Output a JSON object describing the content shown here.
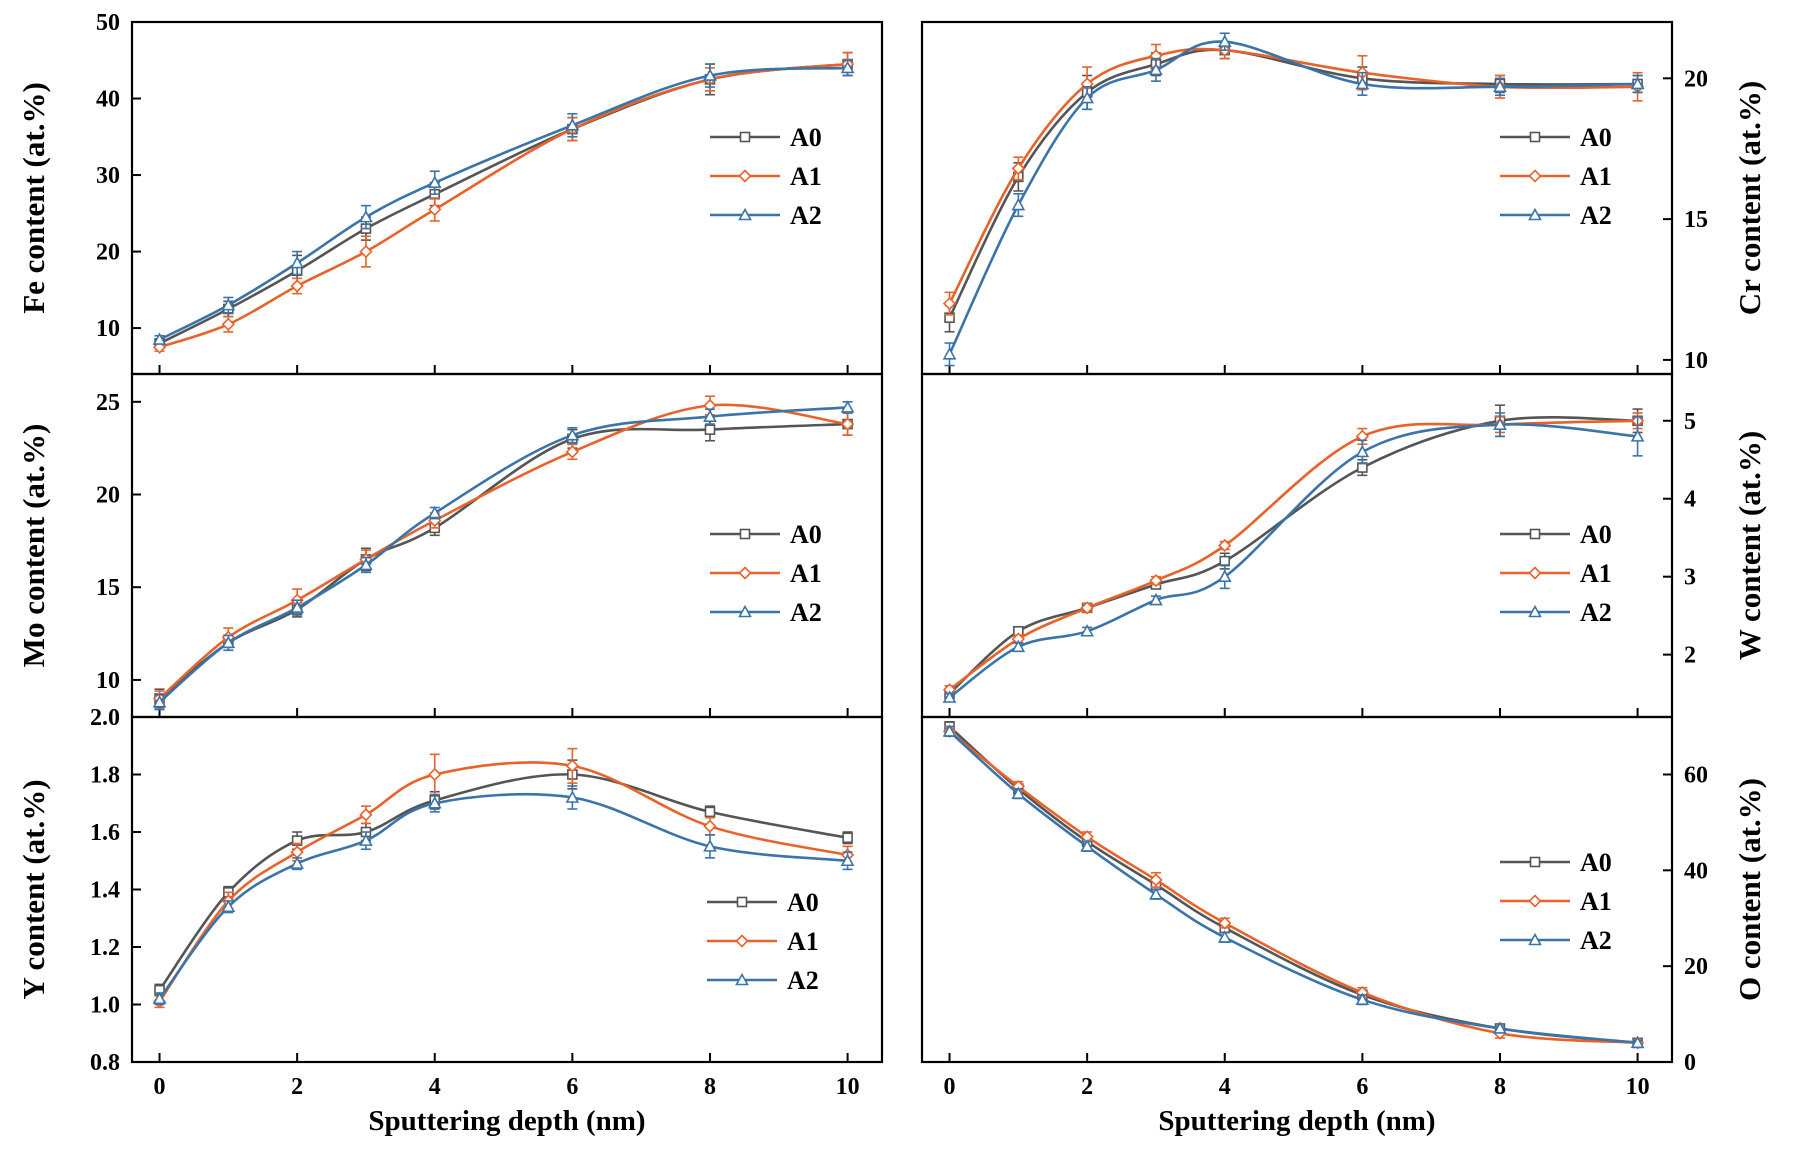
{
  "figure": {
    "series_names": [
      "A0",
      "A1",
      "A2"
    ],
    "series_colors": {
      "A0": "#555555",
      "A1": "#E8622A",
      "A2": "#3A74A8"
    },
    "marker_shapes": {
      "A0": "square",
      "A1": "diamond",
      "A2": "triangle"
    },
    "xlabel": "Sputtering depth (nm)"
  },
  "chart_data": [
    {
      "id": "fe",
      "type": "line",
      "title": "",
      "ylabel": "Fe content (at.%)",
      "xlabel": "",
      "x": [
        0,
        1,
        2,
        3,
        4,
        6,
        8,
        10
      ],
      "xlim": [
        -0.4,
        10.5
      ],
      "ylim": [
        4,
        50
      ],
      "yticks": [
        10,
        20,
        30,
        40,
        50
      ],
      "axis_side": "left",
      "legend": "middle-right",
      "series": [
        {
          "name": "A0",
          "values": [
            8.0,
            12.5,
            17.5,
            23.0,
            27.5,
            36.0,
            42.5,
            44.5
          ],
          "err": [
            0.5,
            1.0,
            2.0,
            1.5,
            1.5,
            1.5,
            2.0,
            1.5
          ]
        },
        {
          "name": "A1",
          "values": [
            7.5,
            10.5,
            15.5,
            20.0,
            25.5,
            36.0,
            42.5,
            44.5
          ],
          "err": [
            0.5,
            1.0,
            1.0,
            2.0,
            1.5,
            1.5,
            1.5,
            1.5
          ]
        },
        {
          "name": "A2",
          "values": [
            8.5,
            13.0,
            18.5,
            24.5,
            29.0,
            36.5,
            43.0,
            44.0
          ],
          "err": [
            0.5,
            1.0,
            1.5,
            1.5,
            1.5,
            1.5,
            1.5,
            1.0
          ]
        }
      ]
    },
    {
      "id": "cr",
      "type": "line",
      "title": "",
      "ylabel": "Cr content (at.%)",
      "xlabel": "",
      "x": [
        0,
        1,
        2,
        3,
        4,
        6,
        8,
        10
      ],
      "xlim": [
        -0.4,
        10.5
      ],
      "ylim": [
        9.5,
        22
      ],
      "yticks": [
        10,
        15,
        20
      ],
      "axis_side": "right",
      "legend": "middle-right",
      "series": [
        {
          "name": "A0",
          "values": [
            11.5,
            16.5,
            19.5,
            20.5,
            21.0,
            20.0,
            19.8,
            19.8
          ],
          "err": [
            0.5,
            0.5,
            0.6,
            0.4,
            0.3,
            0.4,
            0.3,
            0.3
          ]
        },
        {
          "name": "A1",
          "values": [
            12.0,
            16.8,
            19.8,
            20.8,
            21.0,
            20.2,
            19.7,
            19.7
          ],
          "err": [
            0.4,
            0.4,
            0.6,
            0.4,
            0.3,
            0.6,
            0.4,
            0.5
          ]
        },
        {
          "name": "A2",
          "values": [
            10.2,
            15.5,
            19.3,
            20.3,
            21.3,
            19.8,
            19.7,
            19.8
          ],
          "err": [
            0.4,
            0.4,
            0.4,
            0.4,
            0.3,
            0.4,
            0.3,
            0.3
          ]
        }
      ]
    },
    {
      "id": "mo",
      "type": "line",
      "title": "",
      "ylabel": "Mo content (at.%)",
      "xlabel": "",
      "x": [
        0,
        1,
        2,
        3,
        4,
        6,
        8,
        10
      ],
      "xlim": [
        -0.4,
        10.5
      ],
      "ylim": [
        8,
        26.5
      ],
      "yticks": [
        10,
        15,
        20,
        25
      ],
      "axis_side": "left",
      "legend": "middle-right",
      "series": [
        {
          "name": "A0",
          "values": [
            9.0,
            12.0,
            13.8,
            16.5,
            18.2,
            23.0,
            23.5,
            23.8
          ],
          "err": [
            0.5,
            0.4,
            0.4,
            0.6,
            0.4,
            0.5,
            0.6,
            0.6
          ]
        },
        {
          "name": "A1",
          "values": [
            9.0,
            12.3,
            14.3,
            16.5,
            18.6,
            22.3,
            24.8,
            23.8
          ],
          "err": [
            0.4,
            0.5,
            0.6,
            0.5,
            0.4,
            0.4,
            0.5,
            0.6
          ]
        },
        {
          "name": "A2",
          "values": [
            8.8,
            12.0,
            13.9,
            16.2,
            19.0,
            23.2,
            24.2,
            24.7
          ],
          "err": [
            0.4,
            0.4,
            0.4,
            0.4,
            0.3,
            0.4,
            0.4,
            0.3
          ]
        }
      ]
    },
    {
      "id": "w",
      "type": "line",
      "title": "",
      "ylabel": "W content (at.%)",
      "xlabel": "",
      "x": [
        0,
        1,
        2,
        3,
        4,
        6,
        8,
        10
      ],
      "xlim": [
        -0.4,
        10.5
      ],
      "ylim": [
        1.2,
        5.6
      ],
      "yticks": [
        2,
        3,
        4,
        5
      ],
      "axis_side": "right",
      "legend": "middle-right",
      "series": [
        {
          "name": "A0",
          "values": [
            1.5,
            2.3,
            2.6,
            2.9,
            3.2,
            4.4,
            5.0,
            5.0
          ],
          "err": [
            0.05,
            0.05,
            0.05,
            0.05,
            0.1,
            0.1,
            0.2,
            0.15
          ]
        },
        {
          "name": "A1",
          "values": [
            1.55,
            2.2,
            2.6,
            2.95,
            3.4,
            4.8,
            4.95,
            5.0
          ],
          "err": [
            0.05,
            0.05,
            0.05,
            0.05,
            0.05,
            0.1,
            0.1,
            0.1
          ]
        },
        {
          "name": "A2",
          "values": [
            1.45,
            2.1,
            2.3,
            2.7,
            3.0,
            4.6,
            4.95,
            4.8
          ],
          "err": [
            0.05,
            0.05,
            0.05,
            0.05,
            0.15,
            0.15,
            0.15,
            0.25
          ]
        }
      ]
    },
    {
      "id": "y",
      "type": "line",
      "title": "",
      "ylabel": "Y content (at.%)",
      "xlabel": "Sputtering depth (nm)",
      "x": [
        0,
        1,
        2,
        3,
        4,
        6,
        8,
        10
      ],
      "xlim": [
        -0.4,
        10.5
      ],
      "ylim": [
        0.8,
        2.0
      ],
      "yticks": [
        0.8,
        1.0,
        1.2,
        1.4,
        1.6,
        1.8,
        2.0
      ],
      "axis_side": "left",
      "legend": "bottom-right",
      "series": [
        {
          "name": "A0",
          "values": [
            1.05,
            1.39,
            1.57,
            1.6,
            1.71,
            1.8,
            1.67,
            1.58
          ],
          "err": [
            0.02,
            0.02,
            0.03,
            0.03,
            0.03,
            0.05,
            0.02,
            0.02
          ]
        },
        {
          "name": "A1",
          "values": [
            1.01,
            1.36,
            1.53,
            1.66,
            1.8,
            1.83,
            1.62,
            1.52
          ],
          "err": [
            0.02,
            0.03,
            0.03,
            0.03,
            0.07,
            0.06,
            0.03,
            0.03
          ]
        },
        {
          "name": "A2",
          "values": [
            1.02,
            1.34,
            1.49,
            1.57,
            1.7,
            1.72,
            1.55,
            1.5
          ],
          "err": [
            0.02,
            0.02,
            0.02,
            0.03,
            0.03,
            0.04,
            0.04,
            0.03
          ]
        }
      ]
    },
    {
      "id": "o",
      "type": "line",
      "title": "",
      "ylabel": "O content (at.%)",
      "xlabel": "Sputtering depth (nm)",
      "x": [
        0,
        1,
        2,
        3,
        4,
        6,
        8,
        10
      ],
      "xlim": [
        -0.4,
        10.5
      ],
      "ylim": [
        0,
        72
      ],
      "yticks": [
        0,
        20,
        40,
        60
      ],
      "axis_side": "right",
      "legend": "middle-right",
      "series": [
        {
          "name": "A0",
          "values": [
            70,
            57,
            46,
            37,
            28,
            14,
            7,
            4
          ],
          "err": [
            1,
            1,
            1,
            1,
            1,
            1,
            0.5,
            0.5
          ]
        },
        {
          "name": "A1",
          "values": [
            69,
            57.5,
            47,
            38,
            29,
            14.5,
            6,
            4
          ],
          "err": [
            1,
            1,
            1,
            1.5,
            1,
            1,
            1,
            0.5
          ]
        },
        {
          "name": "A2",
          "values": [
            69,
            56,
            45,
            35,
            26,
            13,
            7,
            4
          ],
          "err": [
            1,
            1,
            1,
            1,
            1,
            1,
            0.5,
            0.5
          ]
        }
      ]
    }
  ]
}
